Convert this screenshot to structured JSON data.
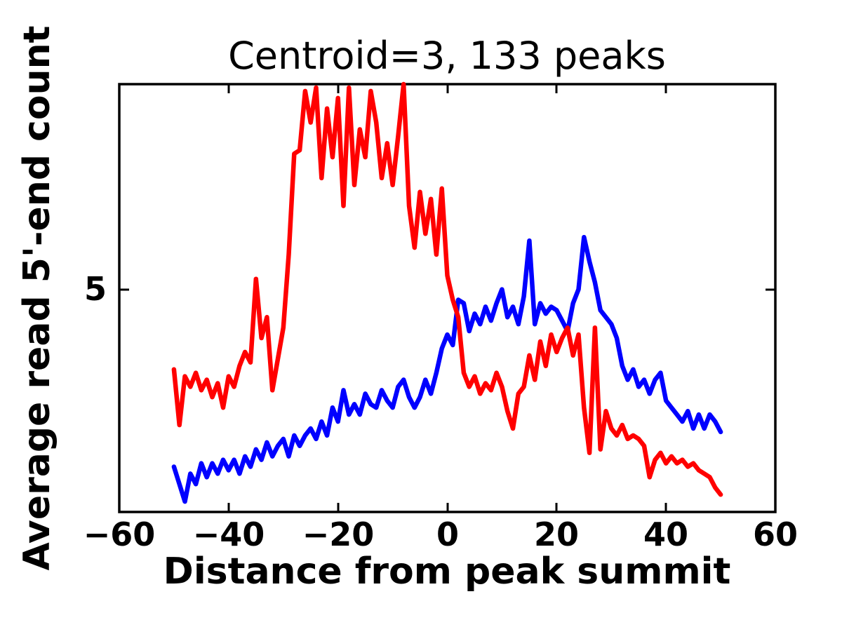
{
  "chart_data": {
    "type": "line",
    "title": "Centroid=3, 133 peaks",
    "xlabel": "Distance from peak summit",
    "ylabel": "Average read 5'-end count",
    "xlim": [
      -60,
      60
    ],
    "ylim": [
      1.8,
      7.95
    ],
    "x_tick_labels": [
      "−60",
      "−40",
      "−20",
      "0",
      "20",
      "40",
      "60"
    ],
    "x_tick_values": [
      -60,
      -40,
      -20,
      0,
      20,
      40,
      60
    ],
    "y_tick_labels": [
      "5"
    ],
    "y_tick_values": [
      5
    ],
    "grid": false,
    "legend": null,
    "x": [
      -50,
      -49,
      -48,
      -47,
      -46,
      -45,
      -44,
      -43,
      -42,
      -41,
      -40,
      -39,
      -38,
      -37,
      -36,
      -35,
      -34,
      -33,
      -32,
      -31,
      -30,
      -29,
      -28,
      -27,
      -26,
      -25,
      -24,
      -23,
      -22,
      -21,
      -20,
      -19,
      -18,
      -17,
      -16,
      -15,
      -14,
      -13,
      -12,
      -11,
      -10,
      -9,
      -8,
      -7,
      -6,
      -5,
      -4,
      -3,
      -2,
      -1,
      0,
      1,
      2,
      3,
      4,
      5,
      6,
      7,
      8,
      9,
      10,
      11,
      12,
      13,
      14,
      15,
      16,
      17,
      18,
      19,
      20,
      21,
      22,
      23,
      24,
      25,
      26,
      27,
      28,
      29,
      30,
      31,
      32,
      33,
      34,
      35,
      36,
      37,
      38,
      39,
      40,
      41,
      42,
      43,
      44,
      45,
      46,
      47,
      48,
      49,
      50
    ],
    "series": [
      {
        "name": "blue",
        "color": "#0000ff",
        "values": [
          2.45,
          2.2,
          1.95,
          2.35,
          2.2,
          2.5,
          2.3,
          2.5,
          2.35,
          2.55,
          2.4,
          2.55,
          2.35,
          2.6,
          2.45,
          2.7,
          2.55,
          2.8,
          2.6,
          2.75,
          2.85,
          2.6,
          2.9,
          2.75,
          2.9,
          3.0,
          2.85,
          3.1,
          2.9,
          3.3,
          3.1,
          3.55,
          3.2,
          3.35,
          3.2,
          3.5,
          3.35,
          3.3,
          3.55,
          3.4,
          3.3,
          3.6,
          3.7,
          3.45,
          3.3,
          3.45,
          3.7,
          3.5,
          3.8,
          4.15,
          4.35,
          4.2,
          4.85,
          4.8,
          4.4,
          4.65,
          4.5,
          4.75,
          4.55,
          4.8,
          5.0,
          4.6,
          4.75,
          4.5,
          4.9,
          5.7,
          4.5,
          4.8,
          4.65,
          4.75,
          4.7,
          4.55,
          4.4,
          4.8,
          5.0,
          5.75,
          5.4,
          5.1,
          4.7,
          4.6,
          4.5,
          4.3,
          3.9,
          3.7,
          3.85,
          3.6,
          3.7,
          3.5,
          3.7,
          3.8,
          3.4,
          3.3,
          3.2,
          3.1,
          3.25,
          3.0,
          3.2,
          3.0,
          3.2,
          3.1,
          2.95
        ]
      },
      {
        "name": "red",
        "color": "#ff0000",
        "values": [
          3.85,
          3.05,
          3.75,
          3.6,
          3.8,
          3.55,
          3.7,
          3.45,
          3.65,
          3.3,
          3.75,
          3.6,
          3.9,
          4.1,
          3.95,
          5.15,
          4.3,
          4.6,
          3.55,
          4.0,
          4.45,
          5.5,
          6.95,
          7.0,
          7.85,
          7.4,
          7.9,
          6.6,
          7.6,
          6.9,
          7.75,
          6.2,
          7.9,
          6.5,
          7.3,
          6.9,
          7.85,
          7.4,
          6.6,
          7.1,
          6.5,
          7.2,
          7.95,
          6.2,
          5.6,
          6.4,
          5.8,
          6.3,
          5.5,
          6.45,
          5.2,
          4.85,
          4.6,
          3.8,
          3.6,
          3.75,
          3.5,
          3.65,
          3.55,
          3.8,
          3.6,
          3.25,
          3.0,
          3.5,
          3.6,
          4.05,
          3.7,
          4.25,
          3.9,
          4.35,
          4.1,
          4.3,
          4.45,
          4.05,
          4.35,
          3.3,
          2.65,
          4.45,
          2.7,
          3.25,
          3.0,
          2.9,
          3.05,
          2.85,
          2.9,
          2.85,
          2.75,
          2.3,
          2.55,
          2.65,
          2.5,
          2.6,
          2.5,
          2.55,
          2.45,
          2.5,
          2.4,
          2.35,
          2.3,
          2.15,
          2.05
        ]
      }
    ]
  }
}
